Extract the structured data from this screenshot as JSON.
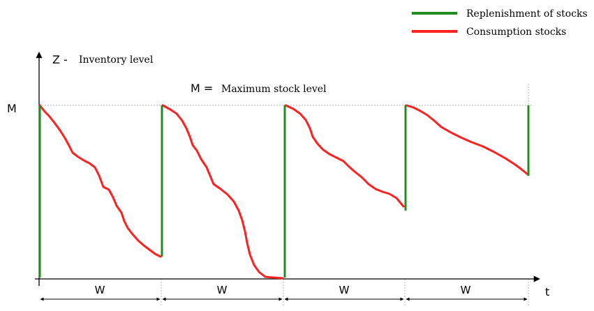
{
  "legend": {
    "items": [
      {
        "label": "Replenishment of stocks",
        "color": "#228b22"
      },
      {
        "label": "Consumption stocks",
        "color": "#ff2020"
      }
    ]
  },
  "labels": {
    "y_axis_symbol": "Z -",
    "y_axis_title": "Inventory level",
    "max_symbol": "M =",
    "max_title": "Maximum stock level",
    "y_tick_label": "M",
    "x_axis_label": "t",
    "period_label": "W"
  },
  "colors": {
    "axis": "#000000",
    "grid": "#b0b0b0",
    "replenishment": "#228b22",
    "consumption": "#ff2020"
  }
}
